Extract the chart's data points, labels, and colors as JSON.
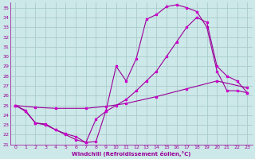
{
  "xlabel": "Windchill (Refroidissement éolien,°C)",
  "bg_color": "#cce8e8",
  "grid_color": "#aacccc",
  "line_color": "#990099",
  "marker_color": "#cc00cc",
  "xlim": [
    -0.5,
    23.5
  ],
  "ylim": [
    21,
    35.5
  ],
  "xticks": [
    0,
    1,
    2,
    3,
    4,
    5,
    6,
    7,
    8,
    9,
    10,
    11,
    12,
    13,
    14,
    15,
    16,
    17,
    18,
    19,
    20,
    21,
    22,
    23
  ],
  "yticks": [
    21,
    22,
    23,
    24,
    25,
    26,
    27,
    28,
    29,
    30,
    31,
    32,
    33,
    34,
    35
  ],
  "line1_x": [
    0,
    1,
    2,
    3,
    4,
    5,
    6,
    7,
    8,
    9,
    10,
    11,
    12,
    13,
    14,
    15,
    16,
    17,
    18,
    19,
    20,
    21,
    22,
    23
  ],
  "line1_y": [
    25.0,
    24.5,
    23.2,
    23.0,
    22.5,
    22.0,
    21.5,
    21.2,
    21.3,
    24.5,
    29.0,
    27.5,
    29.8,
    33.8,
    34.3,
    35.1,
    35.3,
    35.0,
    34.6,
    33.0,
    28.5,
    26.5,
    26.5,
    26.3
  ],
  "line2_x": [
    0,
    2,
    4,
    7,
    9,
    11,
    14,
    17,
    20,
    23
  ],
  "line2_y": [
    25.0,
    24.8,
    24.7,
    24.7,
    24.9,
    25.2,
    25.9,
    26.7,
    27.5,
    26.8
  ],
  "line3_x": [
    0,
    1,
    2,
    3,
    4,
    5,
    6,
    7,
    8,
    9,
    10,
    11,
    12,
    13,
    14,
    15,
    16,
    17,
    18,
    19,
    20,
    21,
    22,
    23
  ],
  "line3_y": [
    25.0,
    24.4,
    23.2,
    23.1,
    22.5,
    22.1,
    21.8,
    21.2,
    23.6,
    24.4,
    25.0,
    25.6,
    26.5,
    27.5,
    28.5,
    30.0,
    31.5,
    33.0,
    34.0,
    33.5,
    29.0,
    28.0,
    27.5,
    26.3
  ]
}
